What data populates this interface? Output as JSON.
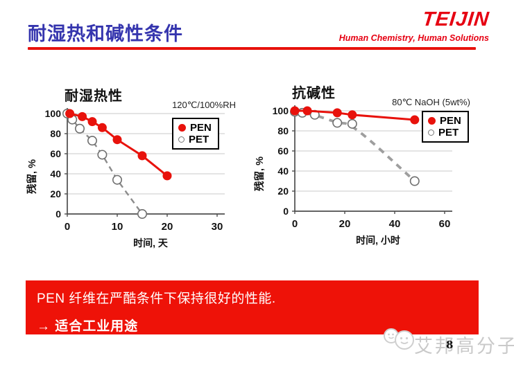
{
  "header": {
    "title": "耐湿热和碱性条件",
    "logo_text": "TEIJIN",
    "tagline": "Human Chemistry, Human Solutions",
    "accent_red": "#e60012",
    "title_blue": "#3535ae"
  },
  "chart_data": [
    {
      "type": "line",
      "title": "耐湿热性",
      "condition": "120℃/100%RH",
      "ylabel": "残留, %",
      "xlabel": "时间, 天",
      "xlim": [
        0,
        30
      ],
      "ylim": [
        0,
        100
      ],
      "x_ticks": [
        0,
        10,
        20,
        30
      ],
      "y_ticks": [
        0,
        20,
        40,
        60,
        80,
        100
      ],
      "grid": true,
      "legend_position": "upper right",
      "series": [
        {
          "name": "PEN",
          "color": "#e8120c",
          "marker": "filled",
          "line": "solid",
          "points": [
            [
              0.5,
              100
            ],
            [
              3,
              97
            ],
            [
              5,
              92
            ],
            [
              7,
              86
            ],
            [
              10,
              74
            ],
            [
              15,
              58
            ],
            [
              20,
              38
            ]
          ]
        },
        {
          "name": "PET",
          "color": "#8c8c8c",
          "marker": "open",
          "line": "dashed",
          "points": [
            [
              0,
              100
            ],
            [
              1,
              94
            ],
            [
              2.5,
              85
            ],
            [
              5,
              73
            ],
            [
              7,
              59
            ],
            [
              10,
              34
            ],
            [
              15,
              0
            ]
          ]
        }
      ]
    },
    {
      "type": "line",
      "title": "抗碱性",
      "condition": "80℃ NaOH (5wt%)",
      "ylabel": "残留, %",
      "xlabel": "时间, 小时",
      "xlim": [
        0,
        60
      ],
      "ylim": [
        0,
        100
      ],
      "x_ticks": [
        0,
        20,
        40,
        60
      ],
      "y_ticks": [
        0,
        20,
        40,
        60,
        80,
        100
      ],
      "grid": true,
      "legend_position": "upper right",
      "series": [
        {
          "name": "PEN",
          "color": "#e8120c",
          "marker": "filled",
          "line": "solid",
          "points": [
            [
              0,
              100
            ],
            [
              5,
              100
            ],
            [
              17,
              98
            ],
            [
              23,
              96
            ],
            [
              48,
              91
            ]
          ]
        },
        {
          "name": "PET",
          "color": "#9e9e9e",
          "marker": "open",
          "line": "dashed",
          "smooth": true,
          "points": [
            [
              0,
              99
            ],
            [
              3,
              98
            ],
            [
              8,
              96
            ],
            [
              17,
              88
            ],
            [
              23,
              87
            ],
            [
              48,
              30
            ]
          ]
        }
      ]
    }
  ],
  "banner": {
    "line1": "PEN 纤维在严酷条件下保持很好的性能.",
    "line2": "→ 适合工业用途",
    "bg_color": "#ee1208"
  },
  "footer": {
    "watermark_text": "艾邦高分子",
    "page_number": "8"
  }
}
